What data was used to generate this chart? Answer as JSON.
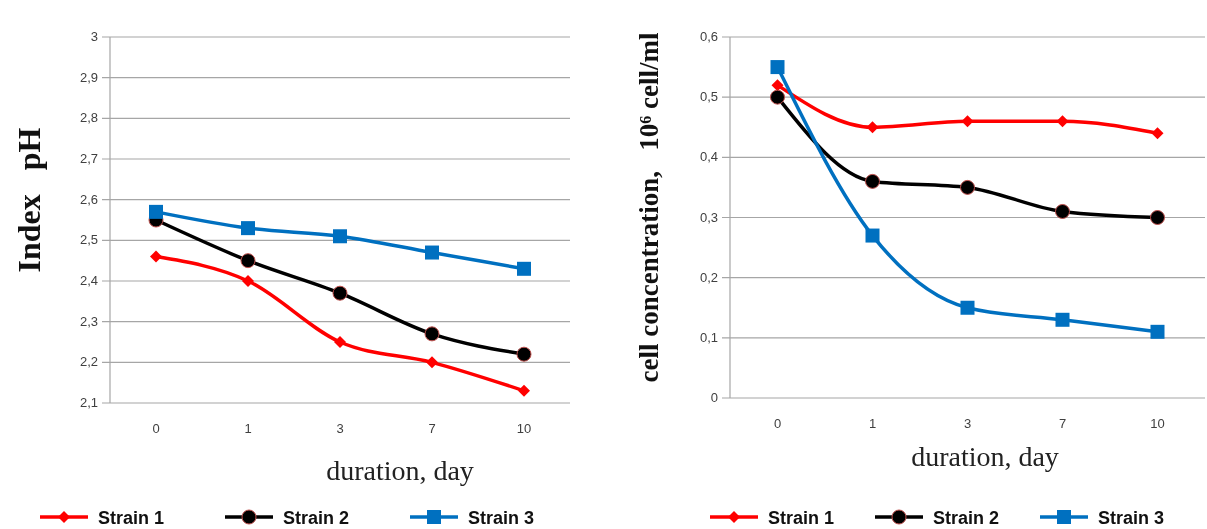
{
  "chart_data": [
    {
      "type": "line",
      "xlabel": "duration, day",
      "ylabel": "Index   pH",
      "categories": [
        "0",
        "1",
        "3",
        "7",
        "10"
      ],
      "series": [
        {
          "name": "Strain 1",
          "color": "#ff0000",
          "marker": "diamond",
          "values": [
            2.46,
            2.4,
            2.25,
            2.2,
            2.13
          ]
        },
        {
          "name": "Strain 2",
          "color": "#000000",
          "marker": "circle",
          "values": [
            2.55,
            2.45,
            2.37,
            2.27,
            2.22
          ]
        },
        {
          "name": "Strain 3",
          "color": "#0070c0",
          "marker": "square",
          "values": [
            2.57,
            2.53,
            2.51,
            2.47,
            2.43
          ]
        }
      ],
      "ylim": [
        2.1,
        3
      ],
      "yticks": [
        {
          "value": 2.1,
          "label": "2,1"
        },
        {
          "value": 2.2,
          "label": "2,2"
        },
        {
          "value": 2.3,
          "label": "2,3"
        },
        {
          "value": 2.4,
          "label": "2,4"
        },
        {
          "value": 2.5,
          "label": "2,5"
        },
        {
          "value": 2.6,
          "label": "2,6"
        },
        {
          "value": 2.7,
          "label": "2,7"
        },
        {
          "value": 2.8,
          "label": "2,8"
        },
        {
          "value": 2.9,
          "label": "2,9"
        },
        3
      ],
      "grid": "y",
      "legend": "bottom"
    },
    {
      "type": "line",
      "xlabel": "duration, day",
      "ylabel": "cell concentration,   10⁶ cell/ml",
      "categories": [
        "0",
        "1",
        "3",
        "7",
        "10"
      ],
      "series": [
        {
          "name": "Strain 1",
          "color": "#ff0000",
          "marker": "diamond",
          "values": [
            0.52,
            0.45,
            0.46,
            0.46,
            0.44
          ]
        },
        {
          "name": "Strain 2",
          "color": "#000000",
          "marker": "circle",
          "values": [
            0.5,
            0.36,
            0.35,
            0.31,
            0.3
          ]
        },
        {
          "name": "Strain 3",
          "color": "#0070c0",
          "marker": "square",
          "values": [
            0.55,
            0.27,
            0.15,
            0.13,
            0.11
          ]
        }
      ],
      "ylim": [
        0,
        0.6
      ],
      "yticks": [
        0,
        {
          "value": 0.1,
          "label": "0,1"
        },
        {
          "value": 0.2,
          "label": "0,2"
        },
        {
          "value": 0.3,
          "label": "0,3"
        },
        {
          "value": 0.4,
          "label": "0,4"
        },
        {
          "value": 0.5,
          "label": "0,5"
        },
        {
          "value": 0.6,
          "label": "0,6"
        }
      ],
      "grid": "y",
      "legend": "bottom"
    }
  ]
}
